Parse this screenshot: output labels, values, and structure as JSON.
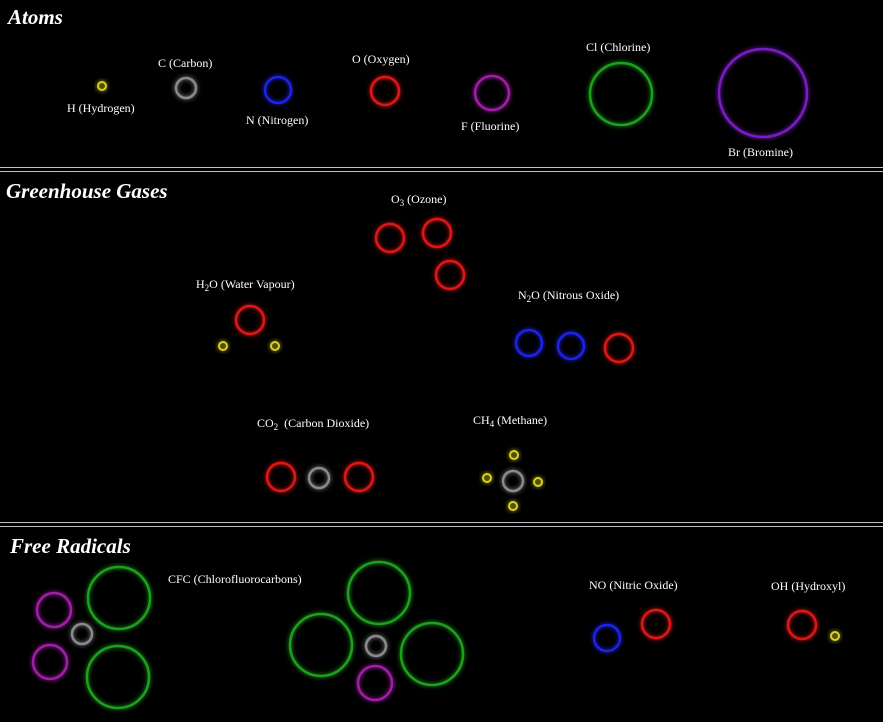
{
  "colors": {
    "H": "#d8d21a",
    "C": "#8a8a8a",
    "N": "#1e22e6",
    "O": "#e01818",
    "F": "#a21ea8",
    "Cl": "#1fa11f",
    "Br": "#7a1ec4"
  },
  "sections": {
    "atoms": "Atoms",
    "greenhouse": "Greenhouse Gases",
    "radicals": "Free Radicals"
  },
  "labels": {
    "hydrogen": "H (Hydrogen)",
    "carbon": "C (Carbon)",
    "nitrogen": "N (Nitrogen)",
    "oxygen": "O (Oxygen)",
    "fluorine": "F (Fluorine)",
    "chlorine": "Cl (Chlorine)",
    "bromine": "Br (Bromine)",
    "ozone": {
      "a": "O",
      "sub": "3",
      "b": " (Ozone)"
    },
    "water": {
      "a": "H",
      "sub": "2",
      "b": "O (Water Vapour)"
    },
    "nitrous": {
      "a": "N",
      "sub": "2",
      "b": "O (Nitrous Oxide)"
    },
    "co2": {
      "a": "CO",
      "sub": "2",
      "b": "  (Carbon Dioxide)"
    },
    "methane": {
      "a": "CH",
      "sub": "4",
      "b": " (Methane)"
    },
    "cfc": "CFC (Chlorofluorocarbons)",
    "no": "NO (Nitric Oxide)",
    "oh": "OH (Hydroxyl)"
  }
}
